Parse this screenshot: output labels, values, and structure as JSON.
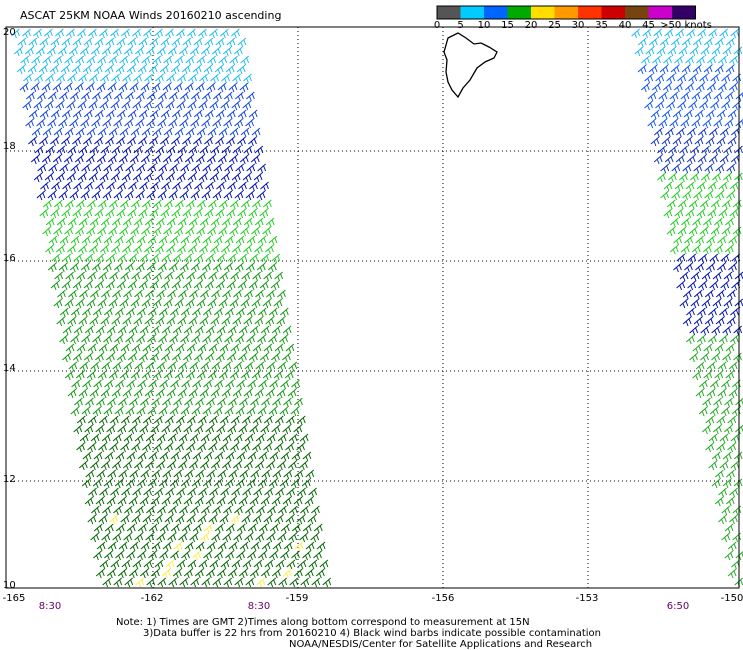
{
  "title": "ASCAT 25KM NOAA Winds 20160210 ascending",
  "colorbar": {
    "colors": [
      "#555555",
      "#00ccff",
      "#0066ff",
      "#00aa00",
      "#ffdd00",
      "#ff9900",
      "#ff3300",
      "#cc0000",
      "#774411",
      "#cc00cc",
      "#330066"
    ],
    "labels": [
      "0",
      "5",
      "10",
      "15",
      "20",
      "25",
      "30",
      "35",
      "40",
      "45",
      ">50 knots"
    ]
  },
  "axes": {
    "y_ticks": [
      "20",
      "18",
      "16",
      "14",
      "12",
      "10"
    ],
    "x_ticks": [
      "-165",
      "-162",
      "-159",
      "-156",
      "-153",
      "-150"
    ],
    "time_labels": [
      "8:30",
      "8:30",
      "6:50"
    ]
  },
  "notes": {
    "line1": "Note: 1) Times are GMT 2)Times along bottom correspond to measurement at 15N",
    "line2": "3)Data buffer is 22 hrs from 20160210 4) Black wind barbs indicate possible contamination",
    "line3": "NOAA/NESDIS/Center for Satellite Applications and Research"
  },
  "chart_data": {
    "type": "map",
    "title": "ASCAT 25KM NOAA Winds 20160210 ascending",
    "lat_range": [
      10,
      20
    ],
    "lon_range": [
      -165,
      -150
    ],
    "grid": true,
    "legend": "top-right colorbar",
    "colorbar_knots": [
      0,
      5,
      10,
      15,
      20,
      25,
      30,
      35,
      40,
      45,
      50
    ],
    "swaths": [
      {
        "pass": "ascending",
        "time": "8:30"
      },
      {
        "pass": "ascending",
        "time": "6:50"
      }
    ]
  }
}
